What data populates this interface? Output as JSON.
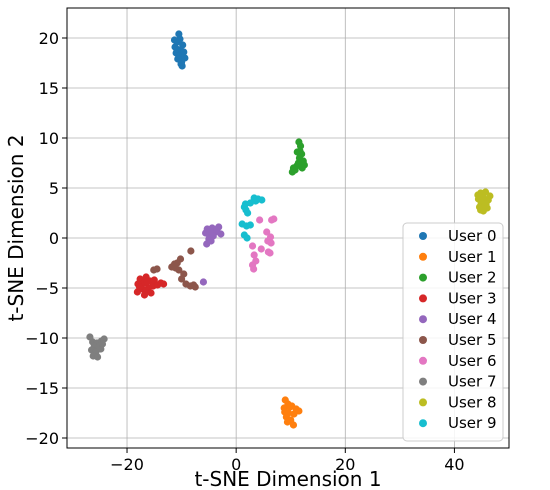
{
  "chart_data": {
    "type": "scatter",
    "title": "",
    "xlabel": "t-SNE Dimension 1",
    "ylabel": "t-SNE Dimension 2",
    "xlim": [
      -31,
      50
    ],
    "ylim": [
      -21,
      23
    ],
    "xticks": [
      -20,
      0,
      20,
      40
    ],
    "yticks": [
      -20,
      -15,
      -10,
      -5,
      0,
      5,
      10,
      15,
      20
    ],
    "xtick_labels": [
      "−20",
      "0",
      "20",
      "40"
    ],
    "ytick_labels": [
      "−20",
      "−15",
      "−10",
      "−5",
      "0",
      "5",
      "10",
      "15",
      "20"
    ],
    "grid": true,
    "legend_position": "lower-right",
    "series": [
      {
        "name": "User 0",
        "color": "#1f77b4",
        "points": [
          [
            -10.5,
            20.4
          ],
          [
            -10.8,
            19.6
          ],
          [
            -11.2,
            19.1
          ],
          [
            -9.8,
            19.3
          ],
          [
            -10.2,
            18.8
          ],
          [
            -11.0,
            18.5
          ],
          [
            -10.4,
            18.2
          ],
          [
            -9.4,
            18.0
          ],
          [
            -10.0,
            17.6
          ],
          [
            -10.7,
            17.9
          ],
          [
            -9.9,
            17.2
          ],
          [
            -11.3,
            19.8
          ],
          [
            -10.3,
            19.9
          ],
          [
            -9.6,
            18.6
          ],
          [
            -10.9,
            18.9
          ],
          [
            -10.1,
            17.4
          ]
        ]
      },
      {
        "name": "User 1",
        "color": "#ff7f0e",
        "points": [
          [
            9.0,
            -16.2
          ],
          [
            9.5,
            -16.6
          ],
          [
            8.8,
            -17.0
          ],
          [
            10.2,
            -16.8
          ],
          [
            11.5,
            -17.3
          ],
          [
            9.6,
            -17.5
          ],
          [
            10.6,
            -17.6
          ],
          [
            9.2,
            -17.9
          ],
          [
            10.0,
            -18.2
          ],
          [
            10.5,
            -18.7
          ],
          [
            9.4,
            -18.4
          ],
          [
            8.9,
            -17.4
          ],
          [
            11.0,
            -17.1
          ],
          [
            9.9,
            -16.9
          ]
        ]
      },
      {
        "name": "User 2",
        "color": "#2ca02c",
        "points": [
          [
            11.5,
            9.6
          ],
          [
            11.8,
            9.2
          ],
          [
            11.2,
            8.6
          ],
          [
            12.0,
            8.4
          ],
          [
            11.6,
            8.0
          ],
          [
            12.3,
            7.7
          ],
          [
            12.5,
            7.3
          ],
          [
            11.1,
            7.2
          ],
          [
            10.5,
            7.0
          ],
          [
            10.3,
            6.6
          ],
          [
            11.4,
            7.5
          ],
          [
            12.1,
            7.0
          ],
          [
            10.8,
            6.8
          ],
          [
            11.7,
            8.7
          ]
        ]
      },
      {
        "name": "User 3",
        "color": "#d62728",
        "points": [
          [
            -16.5,
            -3.9
          ],
          [
            -17.6,
            -4.1
          ],
          [
            -15.8,
            -4.3
          ],
          [
            -16.9,
            -4.5
          ],
          [
            -18.0,
            -4.6
          ],
          [
            -15.2,
            -4.8
          ],
          [
            -13.8,
            -4.5
          ],
          [
            -13.3,
            -4.6
          ],
          [
            -16.1,
            -5.0
          ],
          [
            -17.2,
            -5.1
          ],
          [
            -16.6,
            -5.3
          ],
          [
            -18.1,
            -5.4
          ],
          [
            -15.6,
            -5.5
          ],
          [
            -16.8,
            -5.7
          ],
          [
            -15.0,
            -4.2
          ],
          [
            -14.4,
            -4.7
          ],
          [
            -17.7,
            -4.9
          ],
          [
            -16.3,
            -4.4
          ]
        ]
      },
      {
        "name": "User 4",
        "color": "#9467bd",
        "points": [
          [
            -5.3,
            0.9
          ],
          [
            -4.4,
            1.0
          ],
          [
            -3.2,
            1.1
          ],
          [
            -5.6,
            0.5
          ],
          [
            -4.9,
            0.3
          ],
          [
            -3.8,
            0.6
          ],
          [
            -2.8,
            0.4
          ],
          [
            -4.2,
            0.2
          ],
          [
            -5.0,
            -0.1
          ],
          [
            -5.4,
            -0.6
          ],
          [
            -4.6,
            -0.3
          ],
          [
            -3.5,
            0.9
          ],
          [
            -6.0,
            -4.4
          ],
          [
            -4.8,
            0.7
          ]
        ]
      },
      {
        "name": "User 5",
        "color": "#8c564b",
        "points": [
          [
            -8.3,
            -1.3
          ],
          [
            -10.2,
            -2.1
          ],
          [
            -11.3,
            -2.6
          ],
          [
            -11.8,
            -2.9
          ],
          [
            -10.8,
            -2.5
          ],
          [
            -10.5,
            -3.2
          ],
          [
            -9.6,
            -3.6
          ],
          [
            -10.0,
            -4.1
          ],
          [
            -9.2,
            -4.6
          ],
          [
            -8.4,
            -4.8
          ],
          [
            -7.5,
            -4.9
          ],
          [
            -11.1,
            -3.0
          ],
          [
            -15.1,
            -3.2
          ],
          [
            -14.5,
            -3.1
          ],
          [
            -7.8,
            -4.7
          ]
        ]
      },
      {
        "name": "User 6",
        "color": "#e377c2",
        "points": [
          [
            4.3,
            1.8
          ],
          [
            6.9,
            1.9
          ],
          [
            6.5,
            1.8
          ],
          [
            5.6,
            0.6
          ],
          [
            6.3,
            0.1
          ],
          [
            5.8,
            -0.3
          ],
          [
            6.4,
            -0.5
          ],
          [
            3.0,
            -0.8
          ],
          [
            4.6,
            -1.1
          ],
          [
            5.9,
            -1.4
          ],
          [
            3.3,
            -1.7
          ],
          [
            3.6,
            -2.3
          ],
          [
            3.0,
            -2.7
          ],
          [
            3.2,
            -3.1
          ],
          [
            6.2,
            -1.5
          ]
        ]
      },
      {
        "name": "User 7",
        "color": "#7f7f7f",
        "points": [
          [
            -26.8,
            -9.9
          ],
          [
            -26.3,
            -10.4
          ],
          [
            -25.5,
            -10.5
          ],
          [
            -24.7,
            -10.3
          ],
          [
            -24.2,
            -10.1
          ],
          [
            -26.0,
            -10.8
          ],
          [
            -25.1,
            -10.9
          ],
          [
            -26.5,
            -11.2
          ],
          [
            -25.7,
            -11.4
          ],
          [
            -24.8,
            -11.1
          ],
          [
            -26.2,
            -11.8
          ],
          [
            -25.4,
            -11.9
          ],
          [
            -24.5,
            -10.6
          ]
        ]
      },
      {
        "name": "User 8",
        "color": "#bcbd22",
        "points": [
          [
            44.8,
            4.5
          ],
          [
            45.7,
            4.6
          ],
          [
            46.5,
            4.2
          ],
          [
            44.4,
            3.9
          ],
          [
            45.3,
            4.0
          ],
          [
            46.2,
            3.8
          ],
          [
            44.9,
            3.5
          ],
          [
            45.8,
            3.4
          ],
          [
            44.6,
            3.1
          ],
          [
            45.6,
            3.2
          ],
          [
            46.0,
            3.0
          ],
          [
            44.8,
            2.8
          ],
          [
            45.3,
            2.7
          ],
          [
            44.3,
            4.3
          ]
        ]
      },
      {
        "name": "User 9",
        "color": "#17becf",
        "points": [
          [
            3.3,
            4.0
          ],
          [
            4.0,
            3.9
          ],
          [
            4.7,
            3.8
          ],
          [
            2.6,
            3.5
          ],
          [
            1.7,
            3.4
          ],
          [
            1.5,
            3.1
          ],
          [
            1.8,
            2.8
          ],
          [
            2.1,
            2.5
          ],
          [
            1.1,
            1.4
          ],
          [
            1.9,
            1.2
          ],
          [
            2.6,
            1.3
          ],
          [
            1.5,
            0.3
          ],
          [
            2.0,
            0.0
          ],
          [
            3.6,
            3.7
          ]
        ]
      }
    ]
  }
}
